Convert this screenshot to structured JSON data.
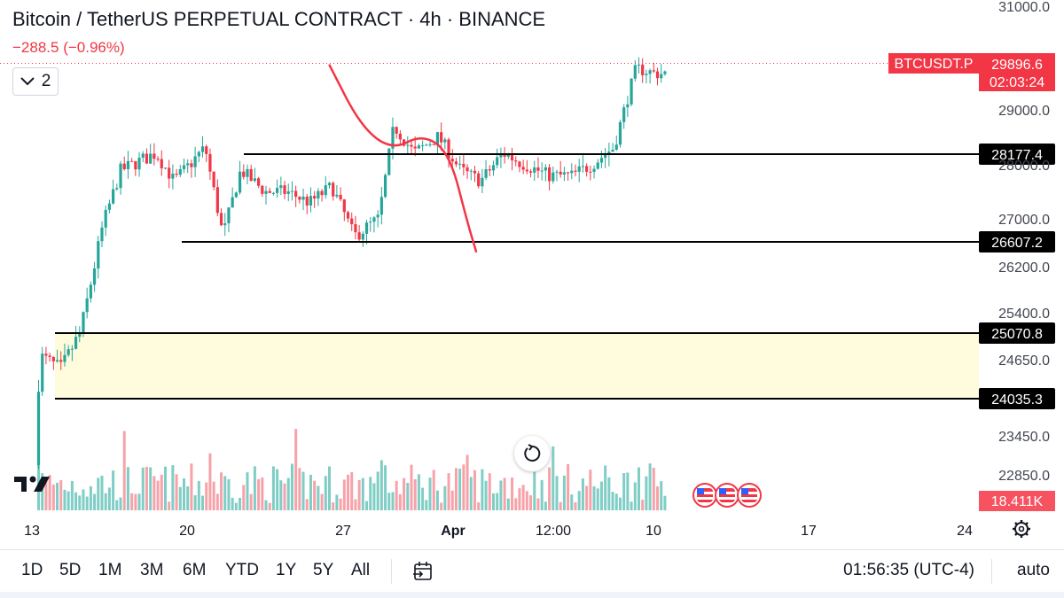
{
  "header": {
    "title": "Bitcoin / TetherUS PERPETUAL CONTRACT · 4h · BINANCE",
    "change": "−288.5 (−0.96%)",
    "collapse_count": "2"
  },
  "price_tag": {
    "symbol": "BTCUSDT.P",
    "price": "29896.6",
    "countdown": "02:03:24",
    "color": "#f23645"
  },
  "volume_tag": "18.411K",
  "price_axis_ticks": [
    "31000.0",
    "29000.0",
    "28000.0",
    "27000.0",
    "26200.0",
    "25400.0",
    "24650.0",
    "23450.0",
    "22850.0"
  ],
  "level_labels": [
    "28177.4",
    "26607.2",
    "25070.8",
    "24035.3"
  ],
  "time_axis_ticks": [
    "13",
    "20",
    "27",
    "Apr",
    "12:00",
    "10",
    "17",
    "24"
  ],
  "ranges": [
    "1D",
    "5D",
    "1M",
    "3M",
    "6M",
    "YTD",
    "1Y",
    "5Y",
    "All"
  ],
  "clock": "01:56:35 (UTC-4)",
  "scale_mode": "auto",
  "colors": {
    "up": "#26a69a",
    "down": "#f23645",
    "zone": "#fffbdd",
    "level": "#000000",
    "projection": "#f23645"
  },
  "chart_data": {
    "type": "candlestick",
    "symbol": "BTCUSDT.P",
    "interval": "4h",
    "y_axis_ticks": [
      31000,
      29000,
      28000,
      27000,
      26200,
      25400,
      24650,
      23450,
      22850
    ],
    "x_axis_ticks": [
      "13",
      "20",
      "27",
      "Apr",
      "12:00",
      "10",
      "17",
      "24"
    ],
    "last_price": 29896.6,
    "change": -288.5,
    "change_pct": -0.96,
    "horizontal_levels": [
      28177.4,
      26607.2,
      25070.8,
      24035.3
    ],
    "zone": {
      "from": 24035.3,
      "to": 25070.8
    },
    "projected_path": [
      {
        "x": 13.4,
        "y": 29860
      },
      {
        "x": 14.8,
        "y": 28700
      },
      {
        "x": 16.2,
        "y": 28250
      },
      {
        "x": 17.6,
        "y": 28550
      },
      {
        "x": 18.8,
        "y": 28200
      },
      {
        "x": 19.6,
        "y": 26950
      },
      {
        "x": 20.0,
        "y": 26450
      }
    ],
    "x_scale": "days_of_view",
    "volume_last": "18.411K"
  }
}
